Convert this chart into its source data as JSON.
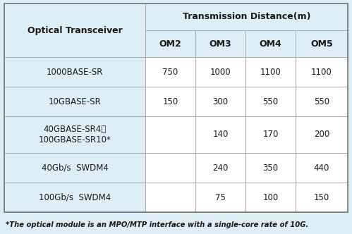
{
  "title_col": "Optical Transceiver",
  "title_span": "Transmission Distance(m)",
  "col_headers": [
    "OM2",
    "OM3",
    "OM4",
    "OM5"
  ],
  "rows": [
    {
      "label": "1000BASE-SR",
      "values": [
        "750",
        "1000",
        "1100",
        "1100"
      ]
    },
    {
      "label": "10GBASE-SR",
      "values": [
        "150",
        "300",
        "550",
        "550"
      ]
    },
    {
      "label": "40GBASE-SR4、\n100GBASE-SR10*",
      "values": [
        "",
        "140",
        "170",
        "200"
      ]
    },
    {
      "label": "40Gb/s  SWDM4",
      "values": [
        "",
        "240",
        "350",
        "440"
      ]
    },
    {
      "label": "100Gb/s  SWDM4",
      "values": [
        "",
        "75",
        "100",
        "150"
      ]
    }
  ],
  "footnote": "*The optical module is an MPO/MTP interface with a single-core rate of 10G.",
  "bg_color": "#ddeef6",
  "cell_bg": "#ffffff",
  "border_color": "#aaaaaa",
  "text_color": "#1a1a1a",
  "header_fontsize": 9.0,
  "cell_fontsize": 8.5,
  "footnote_fontsize": 7.2,
  "fig_width": 4.99,
  "fig_height": 3.32,
  "dpi": 100
}
